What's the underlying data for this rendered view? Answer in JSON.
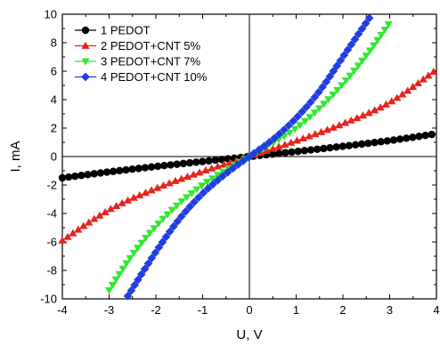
{
  "chart_data": {
    "type": "scatter",
    "title": "",
    "xlabel": "U, V",
    "ylabel": "I, mA",
    "xlim": [
      -4,
      4
    ],
    "ylim": [
      -10,
      10
    ],
    "x_ticks": [
      "-4",
      "-3",
      "-2",
      "-1",
      "0",
      "1",
      "2",
      "3",
      "4"
    ],
    "y_ticks": [
      "-10",
      "-8",
      "-6",
      "-4",
      "-2",
      "0",
      "2",
      "4",
      "6",
      "8",
      "10"
    ],
    "grid": false,
    "legend_position": "top-left",
    "series": [
      {
        "name": "1  PEDOT",
        "color": "#000000",
        "marker": "circle",
        "x": [
          -4,
          -3,
          -2,
          -1,
          0,
          1,
          2,
          3,
          4
        ],
        "y": [
          -1.5,
          -1.08,
          -0.7,
          -0.35,
          0,
          0.35,
          0.72,
          1.12,
          1.6
        ]
      },
      {
        "name": "2  PEDOT+CNT 5%",
        "color": "#e8231c",
        "marker": "triangle-up",
        "x": [
          -4,
          -3,
          -2,
          -1,
          0,
          1,
          2,
          3,
          4
        ],
        "y": [
          -5.9,
          -3.75,
          -2.25,
          -1.05,
          0,
          1.1,
          2.3,
          3.8,
          6.1
        ]
      },
      {
        "name": "3  PEDOT+CNT 7%",
        "color": "#33e633",
        "marker": "triangle-down",
        "x": [
          -3,
          -2.5,
          -2,
          -1.5,
          -1,
          -0.5,
          0,
          0.5,
          1,
          1.5,
          2,
          2.5,
          3
        ],
        "y": [
          -9.4,
          -6.9,
          -4.9,
          -3.3,
          -2.0,
          -0.95,
          0,
          0.95,
          2.0,
          3.4,
          5.1,
          7.1,
          9.4
        ]
      },
      {
        "name": "4  PEDOT+CNT 10%",
        "color": "#1f3de0",
        "marker": "diamond",
        "x": [
          -2.6,
          -2,
          -1.5,
          -1,
          -0.5,
          0,
          0.5,
          1,
          1.5,
          2,
          2.6
        ],
        "y": [
          -9.8,
          -6.7,
          -4.4,
          -2.6,
          -1.2,
          0,
          1.2,
          2.7,
          4.6,
          7.0,
          9.9
        ]
      }
    ]
  }
}
